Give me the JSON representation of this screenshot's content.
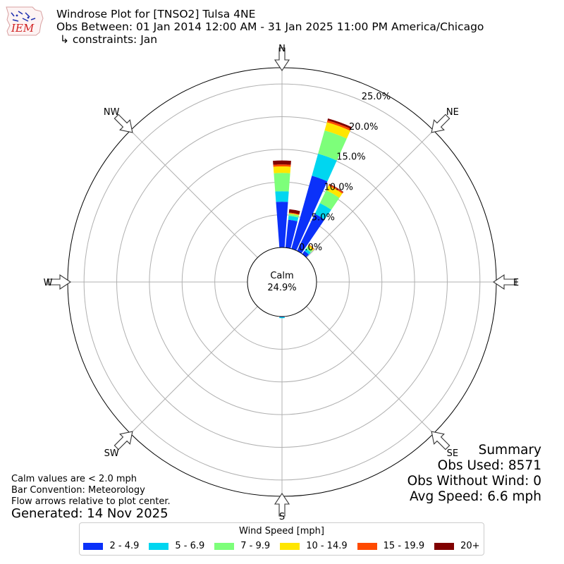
{
  "header": {
    "logo_text": "IEM",
    "title": "Windrose Plot for [TNSO2] Tulsa 4NE",
    "subtitle": "Obs Between: 01 Jan 2014 12:00 AM - 31 Jan 2025 11:00 PM America/Chicago",
    "constraints": "↳ constraints: Jan"
  },
  "chart_data": {
    "type": "windrose",
    "directions": [
      "N",
      "NE",
      "E",
      "SE",
      "S",
      "SW",
      "W",
      "NW"
    ],
    "radial_ticks": [
      "0.0%",
      "5.0%",
      "10.0%",
      "15.0%",
      "20.0%",
      "25.0%"
    ],
    "rmax": 27.5,
    "calm_label": "Calm",
    "calm_value": "24.9%",
    "speed_bins": [
      {
        "label": "2 - 4.9",
        "color": "#0b31f9"
      },
      {
        "label": "5 - 6.9",
        "color": "#00d6f0"
      },
      {
        "label": "7 - 9.9",
        "color": "#7dff7a"
      },
      {
        "label": "10 - 14.9",
        "color": "#ffe600"
      },
      {
        "label": "15 - 19.9",
        "color": "#ff4a00"
      },
      {
        "label": "20+",
        "color": "#800000"
      }
    ],
    "bars": [
      {
        "dir": 0,
        "values": [
          7.0,
          1.6,
          2.8,
          1.0,
          0.3,
          0.6
        ]
      },
      {
        "dir": 10,
        "values": [
          4.3,
          0.6,
          0.3,
          0.1,
          0.1,
          0.5
        ]
      },
      {
        "dir": 20,
        "values": [
          11.6,
          3.5,
          3.7,
          1.3,
          0.3,
          0.3
        ]
      },
      {
        "dir": 30,
        "values": [
          6.3,
          1.8,
          2.2,
          0.8,
          0.2,
          0.1
        ]
      },
      {
        "dir": 40,
        "values": [
          0.6,
          0.4,
          0.4,
          0.3,
          0.1,
          0.0
        ]
      },
      {
        "dir": 180,
        "values": [
          0.1,
          0.15,
          0.0,
          0.0,
          0.0,
          0.0
        ]
      }
    ],
    "legend_title": "Wind Speed [mph]"
  },
  "notes": {
    "calm_note": "Calm values are < 2.0 mph",
    "bar_convention": "Bar Convention: Meteorology",
    "flow_arrows": "Flow arrows relative to plot center.",
    "generated": "Generated: 14 Nov 2025"
  },
  "summary": {
    "heading": "Summary",
    "obs_used": "Obs Used: 8571",
    "obs_without_wind": "Obs Without Wind: 0",
    "avg_speed": "Avg Speed: 6.6 mph"
  }
}
